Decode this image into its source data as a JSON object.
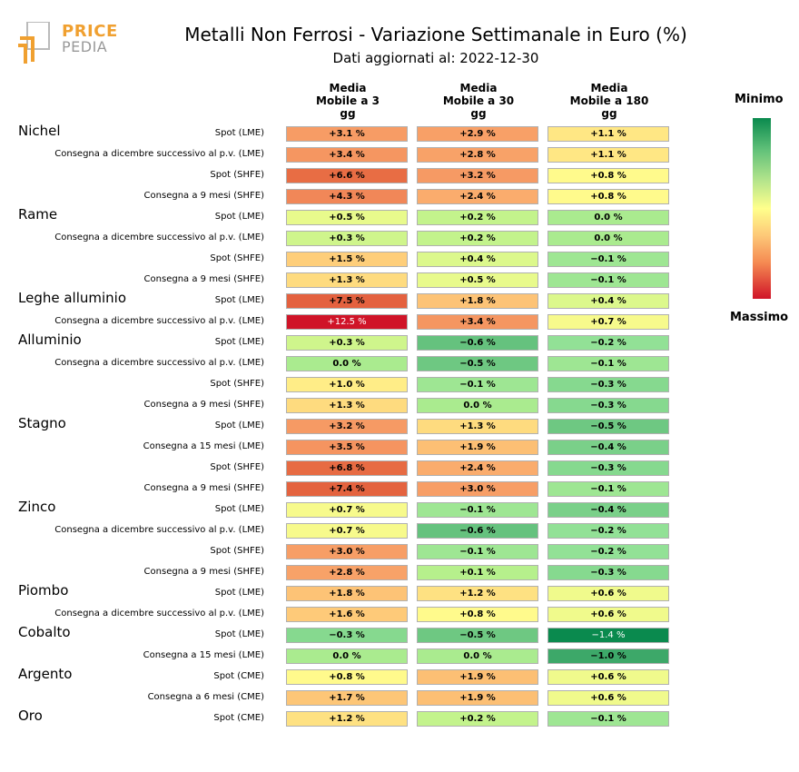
{
  "logo": {
    "line1": "PRICE",
    "line2": "PEDIA"
  },
  "title": "Metalli Non Ferrosi - Variazione Settimanale in Euro (%)",
  "subtitle": "Dati aggiornati al: 2022-12-30",
  "colorbar": {
    "min_label": "Minimo",
    "max_label": "Massimo"
  },
  "chart_data": {
    "type": "heatmap",
    "columns": [
      "Media\nMobile a 3\ngg",
      "Media\nMobile a 30\ngg",
      "Media\nMobile a 180\ngg"
    ],
    "value_range": [
      -1.4,
      12.5
    ],
    "color_scale": {
      "low": "#0a8a4e",
      "mid": "#ffff8c",
      "high": "#d01428"
    },
    "groups": [
      {
        "name": "Nichel",
        "rows": [
          {
            "label": "Spot (LME)",
            "values": [
              3.1,
              2.9,
              1.1
            ],
            "display": [
              "+3.1 %",
              "+2.9 %",
              "+1.1 %"
            ]
          },
          {
            "label": "Consegna a dicembre successivo al p.v. (LME)",
            "values": [
              3.4,
              2.8,
              1.1
            ],
            "display": [
              "+3.4 %",
              "+2.8 %",
              "+1.1 %"
            ]
          },
          {
            "label": "Spot (SHFE)",
            "values": [
              6.6,
              3.2,
              0.8
            ],
            "display": [
              "+6.6 %",
              "+3.2 %",
              "+0.8 %"
            ]
          },
          {
            "label": "Consegna a 9 mesi (SHFE)",
            "values": [
              4.3,
              2.4,
              0.8
            ],
            "display": [
              "+4.3 %",
              "+2.4 %",
              "+0.8 %"
            ]
          }
        ]
      },
      {
        "name": "Rame",
        "rows": [
          {
            "label": "Spot (LME)",
            "values": [
              0.5,
              0.2,
              0.0
            ],
            "display": [
              "+0.5 %",
              "+0.2 %",
              "0.0 %"
            ]
          },
          {
            "label": "Consegna a dicembre successivo al p.v. (LME)",
            "values": [
              0.3,
              0.2,
              0.0
            ],
            "display": [
              "+0.3 %",
              "+0.2 %",
              "0.0 %"
            ]
          },
          {
            "label": "Spot (SHFE)",
            "values": [
              1.5,
              0.4,
              -0.1
            ],
            "display": [
              "+1.5 %",
              "+0.4 %",
              "−0.1 %"
            ]
          },
          {
            "label": "Consegna a 9 mesi (SHFE)",
            "values": [
              1.3,
              0.5,
              -0.1
            ],
            "display": [
              "+1.3 %",
              "+0.5 %",
              "−0.1 %"
            ]
          }
        ]
      },
      {
        "name": "Leghe alluminio",
        "rows": [
          {
            "label": "Spot (LME)",
            "values": [
              7.5,
              1.8,
              0.4
            ],
            "display": [
              "+7.5 %",
              "+1.8 %",
              "+0.4 %"
            ]
          },
          {
            "label": "Consegna a dicembre successivo al p.v. (LME)",
            "values": [
              12.5,
              3.4,
              0.7
            ],
            "display": [
              "+12.5 %",
              "+3.4 %",
              "+0.7 %"
            ]
          }
        ]
      },
      {
        "name": "Alluminio",
        "rows": [
          {
            "label": "Spot (LME)",
            "values": [
              0.3,
              -0.6,
              -0.2
            ],
            "display": [
              "+0.3 %",
              "−0.6 %",
              "−0.2 %"
            ]
          },
          {
            "label": "Consegna a dicembre successivo al p.v. (LME)",
            "values": [
              0.0,
              -0.5,
              -0.1
            ],
            "display": [
              "0.0 %",
              "−0.5 %",
              "−0.1 %"
            ]
          },
          {
            "label": "Spot (SHFE)",
            "values": [
              1.0,
              -0.1,
              -0.3
            ],
            "display": [
              "+1.0 %",
              "−0.1 %",
              "−0.3 %"
            ]
          },
          {
            "label": "Consegna a 9 mesi (SHFE)",
            "values": [
              1.3,
              0.0,
              -0.3
            ],
            "display": [
              "+1.3 %",
              "0.0 %",
              "−0.3 %"
            ]
          }
        ]
      },
      {
        "name": "Stagno",
        "rows": [
          {
            "label": "Spot (LME)",
            "values": [
              3.2,
              1.3,
              -0.5
            ],
            "display": [
              "+3.2 %",
              "+1.3 %",
              "−0.5 %"
            ]
          },
          {
            "label": "Consegna a 15 mesi (LME)",
            "values": [
              3.5,
              1.9,
              -0.4
            ],
            "display": [
              "+3.5 %",
              "+1.9 %",
              "−0.4 %"
            ]
          },
          {
            "label": "Spot (SHFE)",
            "values": [
              6.8,
              2.4,
              -0.3
            ],
            "display": [
              "+6.8 %",
              "+2.4 %",
              "−0.3 %"
            ]
          },
          {
            "label": "Consegna a 9 mesi (SHFE)",
            "values": [
              7.4,
              3.0,
              -0.1
            ],
            "display": [
              "+7.4 %",
              "+3.0 %",
              "−0.1 %"
            ]
          }
        ]
      },
      {
        "name": "Zinco",
        "rows": [
          {
            "label": "Spot (LME)",
            "values": [
              0.7,
              -0.1,
              -0.4
            ],
            "display": [
              "+0.7 %",
              "−0.1 %",
              "−0.4 %"
            ]
          },
          {
            "label": "Consegna a dicembre successivo al p.v. (LME)",
            "values": [
              0.7,
              -0.6,
              -0.2
            ],
            "display": [
              "+0.7 %",
              "−0.6 %",
              "−0.2 %"
            ]
          },
          {
            "label": "Spot (SHFE)",
            "values": [
              3.0,
              -0.1,
              -0.2
            ],
            "display": [
              "+3.0 %",
              "−0.1 %",
              "−0.2 %"
            ]
          },
          {
            "label": "Consegna a 9 mesi (SHFE)",
            "values": [
              2.8,
              0.1,
              -0.3
            ],
            "display": [
              "+2.8 %",
              "+0.1 %",
              "−0.3 %"
            ]
          }
        ]
      },
      {
        "name": "Piombo",
        "rows": [
          {
            "label": "Spot (LME)",
            "values": [
              1.8,
              1.2,
              0.6
            ],
            "display": [
              "+1.8 %",
              "+1.2 %",
              "+0.6 %"
            ]
          },
          {
            "label": "Consegna a dicembre successivo al p.v. (LME)",
            "values": [
              1.6,
              0.8,
              0.6
            ],
            "display": [
              "+1.6 %",
              "+0.8 %",
              "+0.6 %"
            ]
          }
        ]
      },
      {
        "name": "Cobalto",
        "rows": [
          {
            "label": "Spot (LME)",
            "values": [
              -0.3,
              -0.5,
              -1.4
            ],
            "display": [
              "−0.3 %",
              "−0.5 %",
              "−1.4 %"
            ]
          },
          {
            "label": "Consegna a 15 mesi (LME)",
            "values": [
              0.0,
              0.0,
              -1.0
            ],
            "display": [
              "0.0 %",
              "0.0 %",
              "−1.0 %"
            ]
          }
        ]
      },
      {
        "name": "Argento",
        "rows": [
          {
            "label": "Spot (CME)",
            "values": [
              0.8,
              1.9,
              0.6
            ],
            "display": [
              "+0.8 %",
              "+1.9 %",
              "+0.6 %"
            ]
          },
          {
            "label": "Consegna a 6 mesi (CME)",
            "values": [
              1.7,
              1.9,
              0.6
            ],
            "display": [
              "+1.7 %",
              "+1.9 %",
              "+0.6 %"
            ]
          }
        ]
      },
      {
        "name": "Oro",
        "rows": [
          {
            "label": "Spot (CME)",
            "values": [
              1.2,
              0.2,
              -0.1
            ],
            "display": [
              "+1.2 %",
              "+0.2 %",
              "−0.1 %"
            ]
          }
        ]
      }
    ]
  }
}
